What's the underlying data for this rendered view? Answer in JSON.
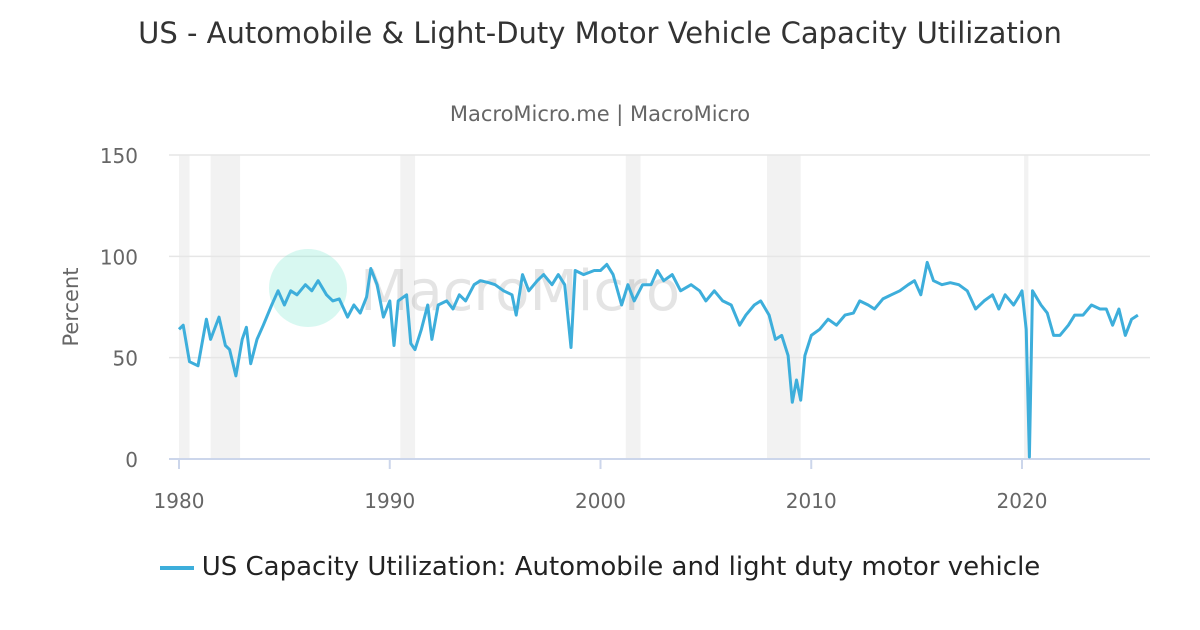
{
  "title": "US - Automobile & Light-Duty Motor Vehicle Capacity Utilization",
  "subtitle": "MacroMicro.me | MacroMicro",
  "watermark": "MacroMicro",
  "chart_data": {
    "type": "line",
    "ylabel": "Percent",
    "ylim": [
      0,
      150
    ],
    "yticks": [
      "0",
      "50",
      "100",
      "150"
    ],
    "xlim": [
      1980,
      2026
    ],
    "xticks": [
      "1980",
      "1990",
      "2000",
      "2010",
      "2020"
    ],
    "grid": true,
    "legend_position": "bottom",
    "recessions": [
      [
        1980.0,
        1980.5
      ],
      [
        1981.5,
        1982.9
      ],
      [
        1990.5,
        1991.2
      ],
      [
        2001.2,
        2001.9
      ],
      [
        2007.9,
        2009.5
      ],
      [
        2020.1,
        2020.3
      ]
    ],
    "series": [
      {
        "name": "US Capacity Utilization: Automobile and light duty motor vehicle",
        "color": "#3daedb",
        "x": [
          1980.0,
          1980.2,
          1980.5,
          1980.9,
          1981.3,
          1981.5,
          1981.9,
          1982.2,
          1982.4,
          1982.7,
          1983.0,
          1983.2,
          1983.4,
          1983.7,
          1984.0,
          1984.4,
          1984.7,
          1985.0,
          1985.3,
          1985.6,
          1986.0,
          1986.3,
          1986.6,
          1987.0,
          1987.3,
          1987.6,
          1988.0,
          1988.3,
          1988.6,
          1988.9,
          1989.1,
          1989.4,
          1989.7,
          1990.0,
          1990.2,
          1990.4,
          1990.8,
          1991.0,
          1991.2,
          1991.5,
          1991.8,
          1992.0,
          1992.3,
          1992.7,
          1993.0,
          1993.3,
          1993.6,
          1994.0,
          1994.3,
          1994.7,
          1995.0,
          1995.4,
          1995.8,
          1996.0,
          1996.3,
          1996.6,
          1997.0,
          1997.3,
          1997.7,
          1998.0,
          1998.3,
          1998.6,
          1998.8,
          1999.2,
          1999.7,
          2000.0,
          2000.3,
          2000.6,
          2001.0,
          2001.3,
          2001.6,
          2002.0,
          2002.4,
          2002.7,
          2003.0,
          2003.4,
          2003.8,
          2004.3,
          2004.7,
          2005.0,
          2005.4,
          2005.8,
          2006.2,
          2006.6,
          2006.9,
          2007.3,
          2007.6,
          2008.0,
          2008.3,
          2008.6,
          2008.9,
          2009.1,
          2009.3,
          2009.5,
          2009.7,
          2010.0,
          2010.4,
          2010.8,
          2011.2,
          2011.6,
          2012.0,
          2012.3,
          2012.7,
          2013.0,
          2013.4,
          2013.8,
          2014.2,
          2014.6,
          2014.9,
          2015.2,
          2015.5,
          2015.8,
          2016.2,
          2016.6,
          2017.0,
          2017.4,
          2017.8,
          2018.2,
          2018.6,
          2018.9,
          2019.2,
          2019.6,
          2019.9,
          2020.0,
          2020.2,
          2020.35,
          2020.5,
          2020.9,
          2021.2,
          2021.5,
          2021.8,
          2022.2,
          2022.5,
          2022.9,
          2023.3,
          2023.7,
          2024.0,
          2024.3,
          2024.6,
          2024.9,
          2025.2,
          2025.5
        ],
        "y": [
          64,
          66,
          48,
          46,
          69,
          59,
          70,
          56,
          54,
          41,
          59,
          65,
          47,
          59,
          66,
          76,
          83,
          76,
          83,
          81,
          86,
          83,
          88,
          81,
          78,
          79,
          70,
          76,
          72,
          80,
          94,
          86,
          70,
          78,
          56,
          78,
          81,
          57,
          54,
          64,
          76,
          59,
          76,
          78,
          74,
          81,
          78,
          86,
          88,
          87,
          86,
          83,
          81,
          71,
          91,
          83,
          88,
          91,
          86,
          91,
          86,
          55,
          93,
          91,
          93,
          93,
          96,
          91,
          76,
          86,
          78,
          86,
          86,
          93,
          88,
          91,
          83,
          86,
          83,
          78,
          83,
          78,
          76,
          66,
          71,
          76,
          78,
          71,
          59,
          61,
          51,
          28,
          39,
          29,
          51,
          61,
          64,
          69,
          66,
          71,
          72,
          78,
          76,
          74,
          79,
          81,
          83,
          86,
          88,
          81,
          97,
          88,
          86,
          87,
          86,
          83,
          74,
          78,
          81,
          74,
          81,
          76,
          81,
          83,
          64,
          1,
          83,
          76,
          72,
          61,
          61,
          66,
          71,
          71,
          76,
          74,
          74,
          66,
          74,
          61,
          69,
          71
        ]
      }
    ]
  }
}
